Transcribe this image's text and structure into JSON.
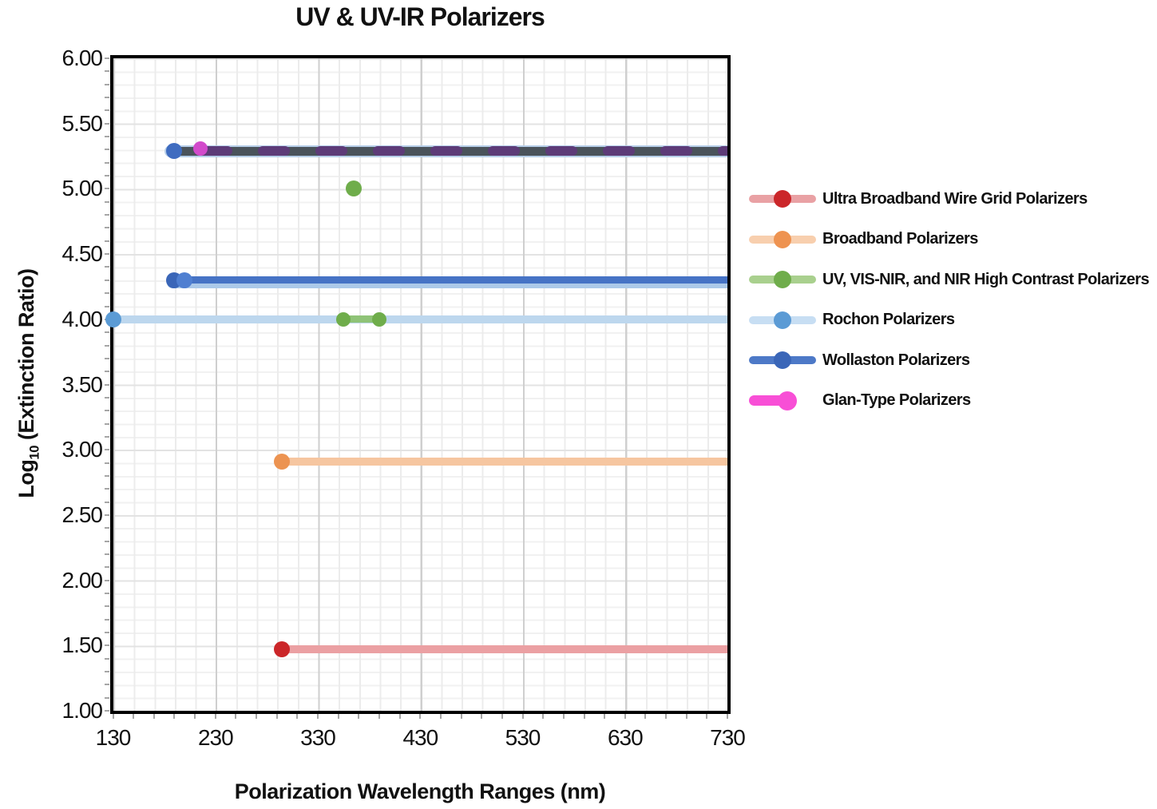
{
  "chart_data": {
    "type": "line",
    "subtype": "horizontal-wavelength-range-lines",
    "title": "UV & UV-IR Polarizers",
    "xlabel": "Polarization Wavelength Ranges (nm)",
    "ylabel": {
      "prefix": "Log",
      "sub": "10",
      "suffix": " (Extinction Ratio)"
    },
    "xlim": [
      130,
      730
    ],
    "ylim": [
      1,
      6
    ],
    "x_ticks": [
      "130",
      "230",
      "330",
      "430",
      "530",
      "630",
      "730"
    ],
    "y_ticks": [
      "6.00",
      "5.50",
      "5.00",
      "4.50",
      "4.00",
      "3.50",
      "3.00",
      "2.50",
      "2.00",
      "1.50",
      "1.00"
    ],
    "grid": {
      "minor_x_step_nm": 20,
      "major_x_step_nm": 100,
      "minor_y_step": 0.1,
      "major_y_step": 0.5,
      "shown": true
    },
    "legend_position": "right-of-plot",
    "series": [
      {
        "name": "Ultra Broadband Wire Grid Polarizers",
        "log10_extinction": 1.47,
        "range_nm": [
          295,
          "≥730 (clipped at axis)"
        ]
      },
      {
        "name": "Broadband Polarizers",
        "log10_extinction": 2.91,
        "range_nm": [
          295,
          "≥730 (clipped at axis)"
        ]
      },
      {
        "name": "UV, VIS-NIR, and NIR High Contrast Polarizers",
        "points": [
          {
            "log10_extinction": 5.0,
            "wavelength_nm": 365
          },
          {
            "log10_extinction": 4.0,
            "range_nm": [
              355,
              390
            ]
          }
        ]
      },
      {
        "name": "Rochon Polarizers",
        "log10_extinction": 4.0,
        "range_nm": [
          130,
          "≥730 (clipped at axis)"
        ]
      },
      {
        "name": "Wollaston Polarizers",
        "log10_extinction": 4.3,
        "range_nm": [
          190,
          "≥730 (clipped at axis)"
        ],
        "second_segment_start_nm": 200
      },
      {
        "name": "Glan-Type Polarizers",
        "log10_extinction": 5.29,
        "range_nm": [
          215,
          "≥730 (clipped at axis)"
        ],
        "style": "magenta dashes over dark overlap line that starts at 190 nm with blue dot"
      }
    ],
    "layers": [
      {
        "id": "top-row-light-underlay",
        "y": 5.29,
        "x1": 186,
        "x2": 730,
        "h": 15,
        "color": "#b7cfe9",
        "clip_right": true
      },
      {
        "id": "top-row-dark-line",
        "y": 5.29,
        "x1": 187,
        "x2": 730,
        "h": 11,
        "color": "#4a535b",
        "clip_right": true
      },
      {
        "id": "wollaston-light-band",
        "y": 4.28,
        "x1": 188,
        "x2": 730,
        "h": 14,
        "color": "#abc9e9",
        "clip_right": true
      },
      {
        "id": "wollaston-line",
        "y": 4.3,
        "x1": 188,
        "x2": 730,
        "h": 9,
        "color": "#4673c5",
        "clip_right": true
      },
      {
        "id": "rochon-line",
        "y": 4.0,
        "x1": 130,
        "x2": 730,
        "h": 10,
        "color": "#bdd7ee",
        "clip_right": true
      },
      {
        "id": "high-contrast-segment",
        "y": 4.0,
        "x1": 355,
        "x2": 390,
        "h": 9,
        "color": "#8fc377",
        "clip_right": false
      },
      {
        "id": "broadband-line",
        "y": 2.91,
        "x1": 295,
        "x2": 730,
        "h": 10,
        "color": "#f6c6a0",
        "clip_right": true
      },
      {
        "id": "wire-grid-line",
        "y": 1.47,
        "x1": 295,
        "x2": 730,
        "h": 10,
        "color": "#eba0a3",
        "clip_right": true
      },
      {
        "id": "glan-type-dashes",
        "y": 5.29,
        "x1": 215,
        "x2": 730,
        "h": 12,
        "color": "#5d3b78",
        "dashed": {
          "dash": 40,
          "gap": 32
        },
        "clip_right": true
      }
    ],
    "points": [
      {
        "id": "top-row-blue-dot",
        "x": 190,
        "y": 5.29,
        "r": 10,
        "color": "#3f6cc0"
      },
      {
        "id": "glan-type-dot",
        "x": 215,
        "y": 5.31,
        "r": 9,
        "color": "#d24acb"
      },
      {
        "id": "high-contrast-dot-365",
        "x": 365,
        "y": 5.0,
        "r": 10,
        "color": "#6fad4b"
      },
      {
        "id": "wollaston-dot-190",
        "x": 190,
        "y": 4.3,
        "r": 10,
        "color": "#3a66b8"
      },
      {
        "id": "wollaston-dot-200",
        "x": 200,
        "y": 4.3,
        "r": 10,
        "color": "#4f7fd1"
      },
      {
        "id": "rochon-dot-130",
        "x": 130,
        "y": 4.0,
        "r": 10,
        "color": "#5b9bd5"
      },
      {
        "id": "high-contrast-dot-355",
        "x": 355,
        "y": 4.0,
        "r": 9,
        "color": "#6fad4b"
      },
      {
        "id": "high-contrast-dot-390",
        "x": 390,
        "y": 4.0,
        "r": 9,
        "color": "#6fad4b"
      },
      {
        "id": "broadband-dot-295",
        "x": 295,
        "y": 2.91,
        "r": 10,
        "color": "#ec9351"
      },
      {
        "id": "wire-grid-dot-295",
        "x": 295,
        "y": 1.47,
        "r": 10,
        "color": "#cb2629"
      }
    ]
  },
  "legend": {
    "items": [
      {
        "label": "Ultra Broadband Wire Grid Polarizers",
        "line_color": "#e9a1a4",
        "dot_color": "#cb2629",
        "marker": "line-dot-center"
      },
      {
        "label": "Broadband Polarizers",
        "line_color": "#f8cfae",
        "dot_color": "#ee9351",
        "marker": "line-dot-center"
      },
      {
        "label": "UV, VIS-NIR, and NIR High Contrast Polarizers",
        "line_color": "#a9d08e",
        "dot_color": "#6fad4b",
        "marker": "line-dot-center"
      },
      {
        "label": "Rochon Polarizers",
        "line_color": "#c7def3",
        "dot_color": "#5b9bd5",
        "marker": "line-dot-center"
      },
      {
        "label": "Wollaston Polarizers",
        "line_color": "#4d79c7",
        "dot_color": "#3a66b8",
        "marker": "line-dot-center"
      },
      {
        "label": "Glan-Type Polarizers",
        "line_color": "#f84fd6",
        "dot_color": "#f84fd6",
        "marker": "short-line-dot-right"
      }
    ]
  }
}
